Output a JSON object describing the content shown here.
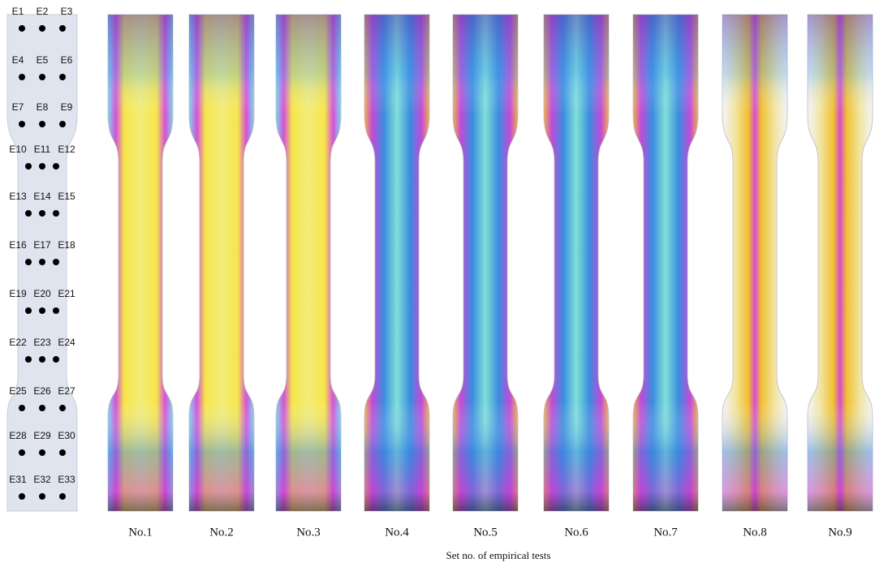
{
  "point_labels": [
    "E1",
    "E2",
    "E3",
    "E4",
    "E5",
    "E6",
    "E7",
    "E8",
    "E9",
    "E10",
    "E11",
    "E12",
    "E13",
    "E14",
    "E15",
    "E16",
    "E17",
    "E18",
    "E19",
    "E20",
    "E21",
    "E22",
    "E23",
    "E24",
    "E25",
    "E26",
    "E27",
    "E28",
    "E29",
    "E30",
    "E31",
    "E32",
    "E33"
  ],
  "specimen_labels": [
    "No.1",
    "No.2",
    "No.3",
    "No.4",
    "No.5",
    "No.6",
    "No.7",
    "No.8",
    "No.9"
  ],
  "caption": "Set no. of empirical tests"
}
